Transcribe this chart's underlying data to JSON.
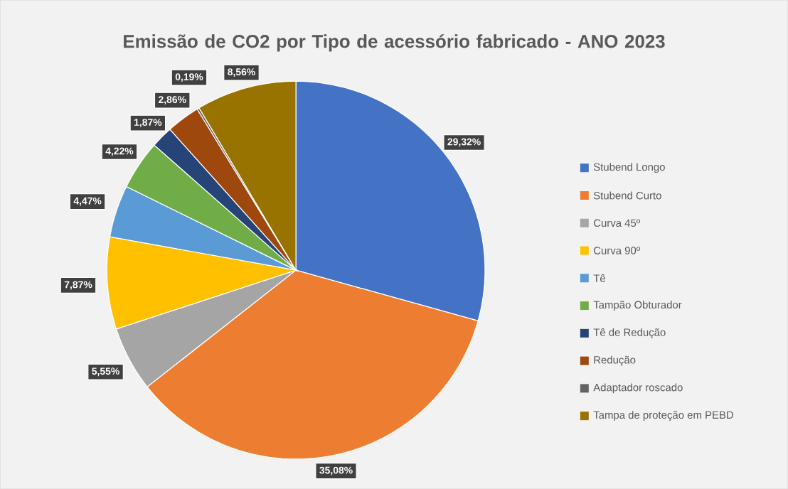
{
  "chart_data": {
    "type": "pie",
    "title": "Emissão de CO2 por Tipo de acessório fabricado - ANO 2023",
    "categories": [
      "Stubend Longo",
      "Stubend Curto",
      "Curva 45º",
      "Curva 90º",
      "Tê",
      "Tampão Obturador",
      "Tê de Redução",
      "Redução",
      "Adaptador roscado",
      "Tampa de proteção em PEBD"
    ],
    "values": [
      29.32,
      35.08,
      5.55,
      7.87,
      4.47,
      4.22,
      1.87,
      2.86,
      0.19,
      8.56
    ],
    "colors": [
      "#4472c4",
      "#ed7d31",
      "#a5a5a5",
      "#ffc000",
      "#5b9bd5",
      "#70ad47",
      "#264478",
      "#9e480e",
      "#636363",
      "#997300"
    ],
    "value_labels": [
      "29,32%",
      "35,08%",
      "5,55%",
      "7,87%",
      "4,47%",
      "4,22%",
      "1,87%",
      "2,86%",
      "0,19%",
      "8,56%"
    ],
    "legend": "right"
  }
}
